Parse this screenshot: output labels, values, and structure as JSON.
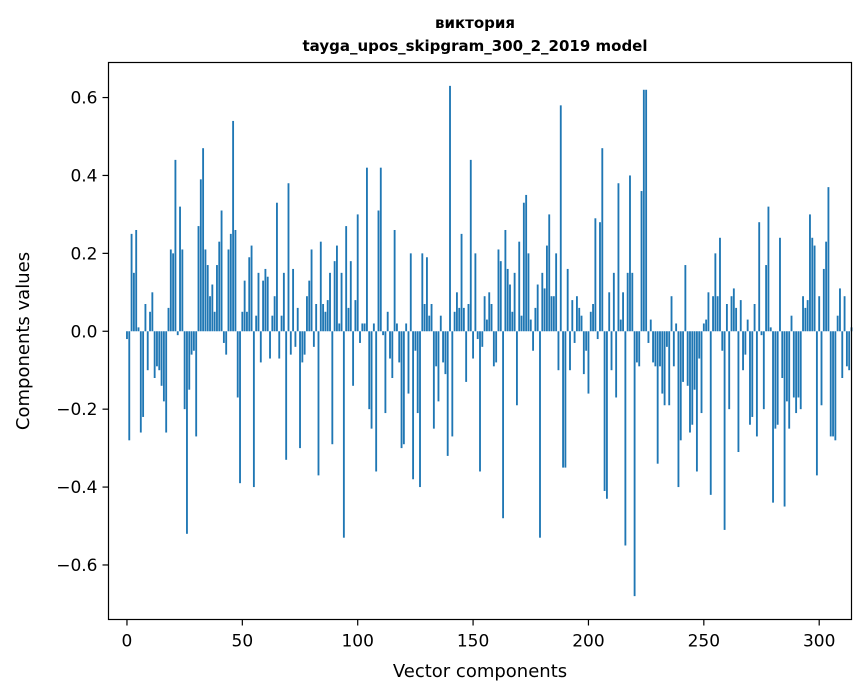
{
  "chart_data": {
    "type": "bar",
    "title": "виктория",
    "subtitle": "tayga_upos_skipgram_300_2_2019 model",
    "xlabel": "Vector components",
    "ylabel": "Components values",
    "xlim": [
      -8,
      314
    ],
    "ylim": [
      -0.74,
      0.69
    ],
    "xticks": [
      0,
      50,
      100,
      150,
      200,
      250,
      300
    ],
    "xtick_labels": [
      "0",
      "50",
      "100",
      "150",
      "200",
      "250",
      "300"
    ],
    "yticks": [
      -0.6,
      -0.4,
      -0.2,
      0.0,
      0.2,
      0.4,
      0.6
    ],
    "ytick_labels": [
      "−0.6",
      "−0.4",
      "−0.2",
      "0.0",
      "0.2",
      "0.4",
      "0.6"
    ],
    "bar_color": "#1f77b4",
    "grid": false,
    "series": [
      {
        "values": [
          -0.02,
          -0.28,
          0.25,
          0.15,
          0.26,
          0.01,
          -0.26,
          -0.22,
          0.07,
          -0.1,
          0.05,
          0.1,
          -0.12,
          -0.09,
          -0.1,
          -0.14,
          -0.18,
          -0.26,
          0.06,
          0.21,
          0.2,
          0.44,
          -0.01,
          0.32,
          0.21,
          -0.2,
          -0.52,
          -0.15,
          -0.06,
          -0.05,
          -0.27,
          0.27,
          0.39,
          0.47,
          0.21,
          0.17,
          0.09,
          0.12,
          0.05,
          0.17,
          0.23,
          0.31,
          -0.03,
          -0.06,
          0.21,
          0.25,
          0.54,
          0.26,
          -0.17,
          -0.39,
          0.05,
          0.13,
          0.05,
          0.19,
          0.22,
          -0.4,
          0.04,
          0.15,
          -0.08,
          0.13,
          0.16,
          0.14,
          -0.07,
          0.04,
          0.09,
          0.33,
          -0.07,
          0.04,
          0.15,
          -0.33,
          0.38,
          -0.06,
          0.16,
          -0.04,
          0.06,
          -0.3,
          -0.08,
          -0.06,
          0.09,
          0.13,
          0.21,
          -0.04,
          0.07,
          -0.37,
          0.23,
          0.07,
          0.05,
          0.08,
          0.15,
          -0.29,
          0.18,
          0.22,
          0.02,
          0.15,
          -0.53,
          0.27,
          0.06,
          0.18,
          -0.14,
          0.08,
          0.3,
          -0.03,
          0.02,
          0.02,
          0.42,
          -0.2,
          -0.25,
          0.02,
          -0.36,
          0.31,
          0.42,
          -0.01,
          -0.21,
          0.05,
          -0.07,
          -0.12,
          0.26,
          0.02,
          -0.08,
          -0.3,
          -0.29,
          0.02,
          -0.16,
          0.2,
          -0.38,
          -0.05,
          -0.21,
          -0.4,
          0.2,
          0.07,
          0.19,
          0.04,
          0.07,
          -0.25,
          -0.09,
          -0.18,
          0.04,
          -0.08,
          -0.11,
          -0.32,
          0.63,
          -0.27,
          0.05,
          0.1,
          0.06,
          0.25,
          0.06,
          -0.13,
          0.07,
          0.44,
          -0.07,
          0.2,
          -0.02,
          -0.36,
          -0.04,
          0.09,
          0.03,
          0.1,
          0.07,
          -0.09,
          -0.08,
          0.21,
          0.18,
          -0.48,
          0.26,
          0.16,
          0.12,
          0.05,
          0.15,
          -0.19,
          0.23,
          0.04,
          0.33,
          0.35,
          0.2,
          0.03,
          -0.05,
          0.06,
          0.12,
          -0.53,
          0.15,
          0.11,
          0.22,
          0.3,
          0.09,
          0.09,
          0.2,
          -0.1,
          0.58,
          -0.35,
          -0.35,
          0.16,
          -0.1,
          0.08,
          -0.03,
          0.09,
          0.06,
          0.04,
          -0.11,
          -0.05,
          -0.16,
          0.05,
          0.07,
          0.29,
          -0.02,
          0.28,
          0.47,
          -0.41,
          -0.43,
          0.1,
          -0.1,
          0.15,
          -0.17,
          0.38,
          0.03,
          0.1,
          -0.55,
          0.15,
          0.4,
          0.15,
          -0.68,
          -0.08,
          -0.09,
          0.36,
          0.62,
          0.62,
          -0.03,
          0.03,
          -0.08,
          -0.09,
          -0.34,
          -0.09,
          -0.16,
          -0.19,
          -0.04,
          -0.19,
          0.09,
          -0.09,
          0.02,
          -0.4,
          -0.28,
          -0.13,
          0.17,
          -0.14,
          -0.26,
          -0.24,
          -0.15,
          -0.36,
          -0.07,
          -0.21,
          0.02,
          0.03,
          0.1,
          -0.42,
          0.09,
          0.2,
          0.09,
          0.24,
          -0.05,
          -0.51,
          0.07,
          -0.2,
          0.09,
          0.11,
          0.06,
          -0.31,
          0.08,
          -0.1,
          -0.06,
          0.03,
          -0.24,
          -0.22,
          0.07,
          -0.27,
          0.28,
          -0.01,
          -0.2,
          0.17,
          0.32,
          0.01,
          -0.44,
          -0.25,
          -0.24,
          0.24,
          -0.12,
          -0.45,
          -0.18,
          -0.25,
          0.04,
          -0.17,
          -0.21,
          -0.17,
          -0.2,
          0.09,
          0.06,
          0.08,
          0.3,
          0.24,
          0.22,
          -0.37,
          0.09,
          -0.19,
          0.16,
          0.23,
          0.37,
          -0.27,
          -0.27,
          -0.28,
          0.04,
          0.11,
          -0.12,
          0.09,
          -0.09,
          -0.1,
          0.01
        ]
      }
    ]
  }
}
